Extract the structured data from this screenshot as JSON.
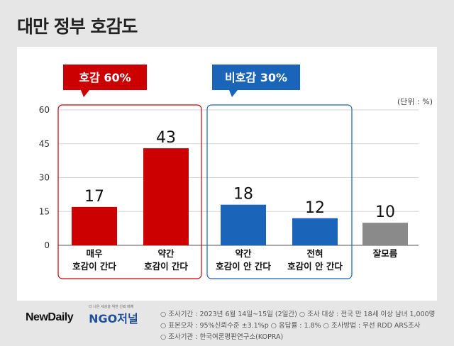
{
  "page": {
    "title": "대만 정부 호감도"
  },
  "unit_label": "(단위 : %)",
  "groups": [
    {
      "label": "호감 60%",
      "color": "#cc0000"
    },
    {
      "label": "비호감 30%",
      "color": "#1a64b9"
    }
  ],
  "chart_data": {
    "type": "bar",
    "categories": [
      "매우\n호감이 간다",
      "약간\n호감이 간다",
      "약간\n호감이 안 간다",
      "전혀\n호감이 안 간다",
      "잘모름"
    ],
    "values": [
      17,
      43,
      18,
      12,
      10
    ],
    "colors": [
      "#cc0000",
      "#cc0000",
      "#1a64b9",
      "#1a64b9",
      "#8a8a8a"
    ],
    "ylim": [
      0,
      60
    ],
    "yticks": [
      0,
      15,
      30,
      45,
      60
    ],
    "title": "대만 정부 호감도",
    "xlabel": "",
    "ylabel": ""
  },
  "footer": {
    "logo1": "NewDaily",
    "logo2": "NGO저널",
    "logo2_tag": "더 나은 세상을 위한 신뢰 매체",
    "notes": [
      "○ 조사기간 : 2023년 6월 14일~15일 (2일간)  ○ 조사 대상 : 전국 만 18세 이상 남녀 1,000명",
      "○ 표본오차 : 95%신뢰수준 ±3.1%p  ○ 응답률 : 1.8%  ○ 조사방법 : 무선 RDD ARS조사",
      "○ 조사기관 : 한국여론평판연구소(KOPRA)"
    ]
  }
}
